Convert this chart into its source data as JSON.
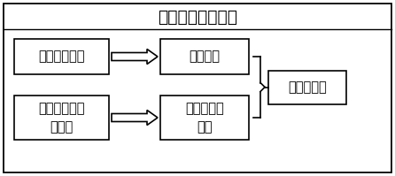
{
  "title": "晶相定量分析系统",
  "box1_text": "全局策略模块",
  "box2_line1": "数据收集和处",
  "box2_line2": "理模块",
  "box3_text": "颗粒位置",
  "box4_line1": "颗粒晶相及",
  "box4_line2": "体积",
  "box5_text": "各晶相含量",
  "bg_color": "#ffffff",
  "border_color": "#000000",
  "box_fill": "#ffffff",
  "text_color": "#000000",
  "fontsize": 10.5,
  "title_fontsize": 13.5
}
